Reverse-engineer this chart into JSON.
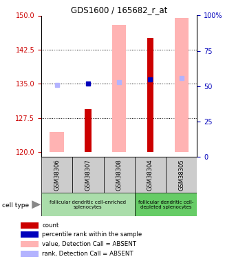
{
  "title": "GDS1600 / 165682_r_at",
  "samples": [
    "GSM38306",
    "GSM38307",
    "GSM38308",
    "GSM38304",
    "GSM38305"
  ],
  "ylim_left": [
    119,
    150
  ],
  "ylim_right": [
    0,
    100
  ],
  "yticks_left": [
    120,
    127.5,
    135,
    142.5,
    150
  ],
  "yticks_right": [
    0,
    25,
    50,
    75,
    100
  ],
  "bar_bottom": 120,
  "red_bars": [
    null,
    129.5,
    null,
    145,
    null
  ],
  "pink_bars": [
    124.5,
    null,
    148,
    null,
    149.5
  ],
  "blue_squares": [
    null,
    135,
    null,
    136,
    null
  ],
  "light_blue_squares": [
    134.8,
    null,
    135.3,
    null,
    136.2
  ],
  "red_color": "#cc0000",
  "pink_color": "#ffb3b3",
  "blue_color": "#0000bb",
  "light_blue_color": "#b3b3ff",
  "cell_type_groups": [
    {
      "label": "follicular dendritic cell-enriched\nsplenocytes",
      "start": 0,
      "end": 3,
      "color": "#aaddaa"
    },
    {
      "label": "follicular dendritic cell-\ndepleted splenocytes",
      "start": 3,
      "end": 5,
      "color": "#66cc66"
    }
  ],
  "legend_items": [
    {
      "color": "#cc0000",
      "label": "count"
    },
    {
      "color": "#0000bb",
      "label": "percentile rank within the sample"
    },
    {
      "color": "#ffb3b3",
      "label": "value, Detection Call = ABSENT"
    },
    {
      "color": "#b3b3ff",
      "label": "rank, Detection Call = ABSENT"
    }
  ],
  "ylabel_left_color": "#cc0000",
  "ylabel_right_color": "#0000bb",
  "background_color": "#ffffff",
  "sample_bg_color": "#cccccc"
}
